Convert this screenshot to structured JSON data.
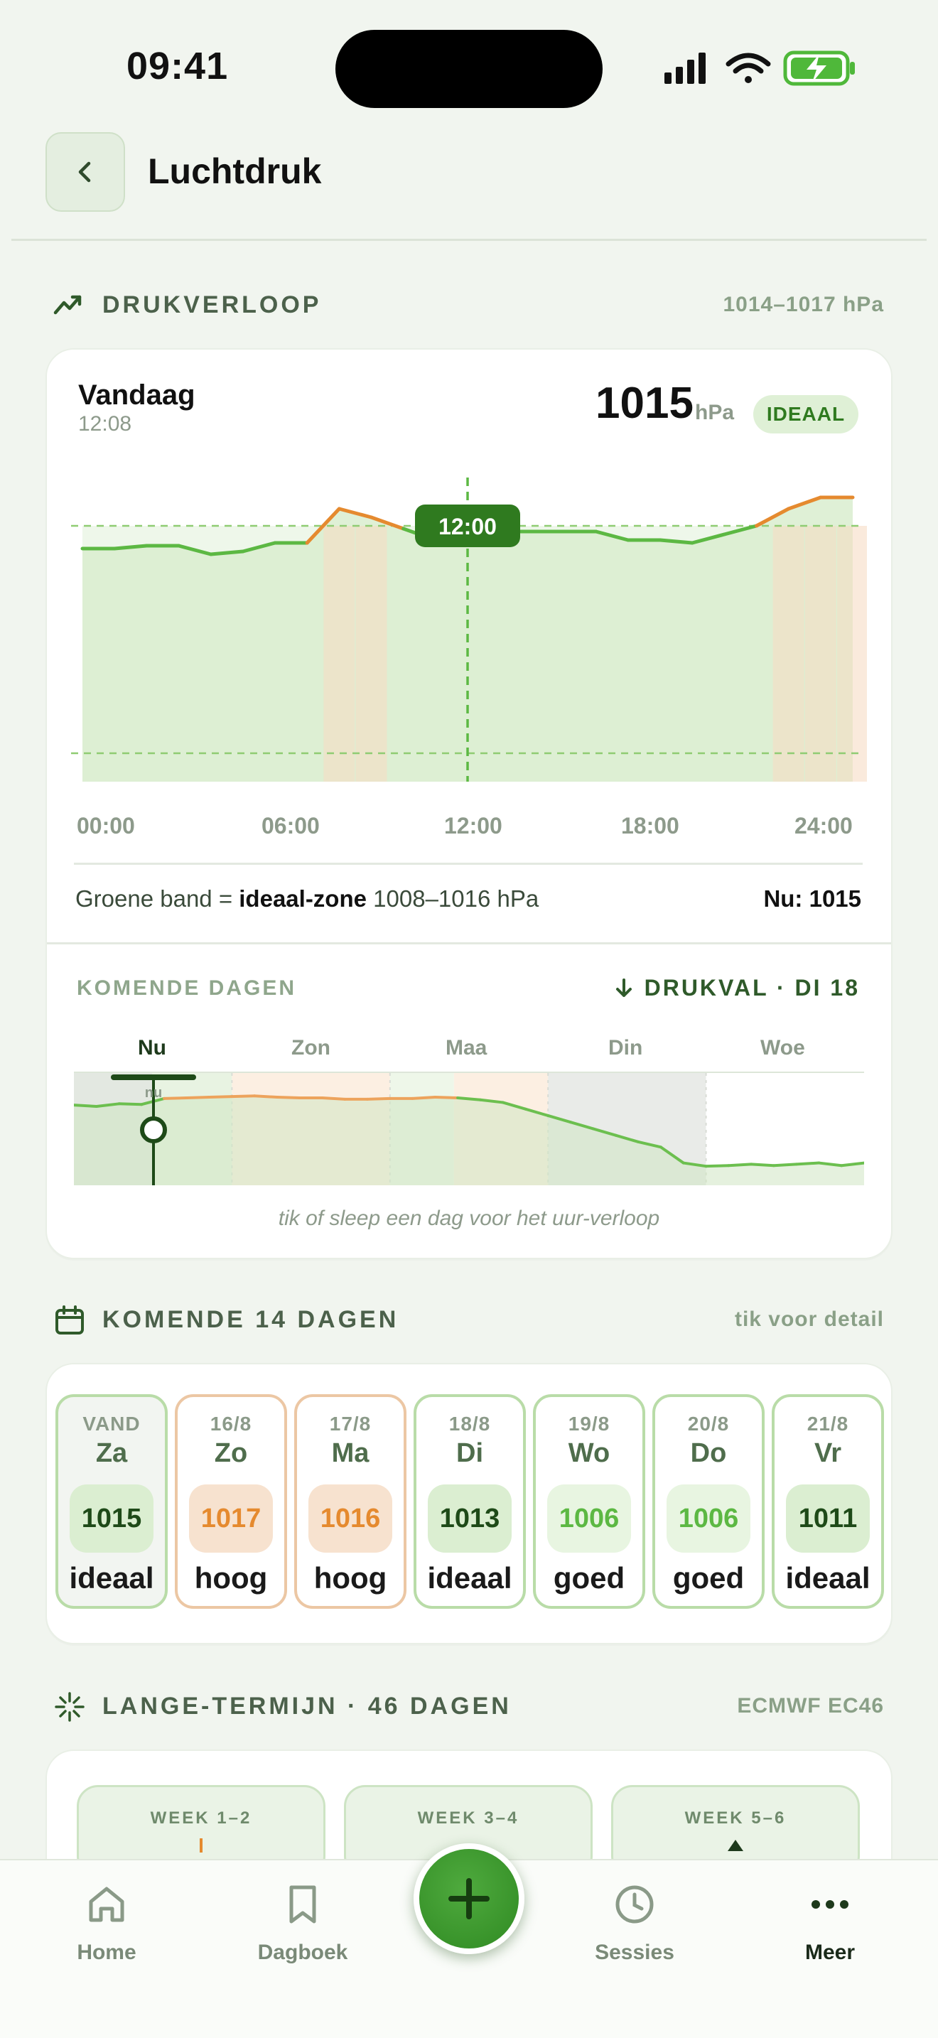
{
  "status_bar": {
    "time": "09:41"
  },
  "header": {
    "title": "Luchtdruk"
  },
  "pressure_section": {
    "label": "DRUKVERLOOP",
    "range": "1014–1017 hPa"
  },
  "today_card": {
    "day": "Vandaag",
    "time": "12:08",
    "value": "1015",
    "unit": "hPa",
    "badge": "IDEAAL",
    "cursor_label": "12:00",
    "x_ticks": [
      "00:00",
      "06:00",
      "12:00",
      "18:00",
      "24:00"
    ],
    "legend_prefix": "Groene band =",
    "legend_bold": "ideaal-zone",
    "legend_range": "1008–1016 hPa",
    "now_text": "Nu: 1015"
  },
  "chart_data": [
    {
      "type": "line",
      "x": [
        "00:00",
        "01:00",
        "02:00",
        "03:00",
        "04:00",
        "05:00",
        "06:00",
        "07:00",
        "08:00",
        "09:00",
        "10:00",
        "11:00",
        "12:00",
        "13:00",
        "14:00",
        "15:00",
        "16:00",
        "17:00",
        "18:00",
        "19:00",
        "20:00",
        "21:00",
        "22:00",
        "23:00",
        "24:00"
      ],
      "series": [
        {
          "values": [
            1015.2,
            1015.2,
            1015.3,
            1015.3,
            1015.0,
            1015.1,
            1015.4,
            1015.4,
            1016.6,
            1016.3,
            1015.9,
            1015.5,
            1015.7,
            1015.8,
            1015.8,
            1015.8,
            1015.8,
            1015.5,
            1015.5,
            1015.4,
            1015.7,
            1016.0,
            1016.6,
            1017.0,
            1017.0
          ]
        }
      ],
      "ideal_band": [
        1008,
        1016
      ],
      "ylim": [
        1007,
        1018
      ]
    },
    {
      "type": "area",
      "days": [
        "Nu",
        "Zon",
        "Maa",
        "Din",
        "Woe"
      ],
      "marker_label": "nu",
      "values": [
        1015.2,
        1015.0,
        1015.4,
        1015.3,
        1016.2,
        1016.3,
        1016.4,
        1016.5,
        1016.6,
        1016.4,
        1016.3,
        1016.3,
        1016.1,
        1016.1,
        1016.2,
        1016.2,
        1016.4,
        1016.3,
        1016.0,
        1015.6,
        1014.6,
        1013.6,
        1012.6,
        1011.6,
        1010.6,
        1009.6,
        1008.8,
        1006.4,
        1005.9,
        1006.0,
        1006.2,
        1006.0,
        1006.2,
        1006.4,
        1006.0,
        1006.4
      ]
    }
  ],
  "upcoming": {
    "label": "KOMENDE DAGEN",
    "alert": "DRUKVAL · DI 18",
    "days": [
      "Nu",
      "Zon",
      "Maa",
      "Din",
      "Woe"
    ],
    "marker": "nu",
    "hint": "tik of sleep een dag voor het uur-verloop"
  },
  "forecast14": {
    "label": "KOMENDE 14 DAGEN",
    "hint": "tik voor detail",
    "days": [
      {
        "date": "VAND",
        "day": "Za",
        "value": "1015",
        "status": "ideaal"
      },
      {
        "date": "16/8",
        "day": "Zo",
        "value": "1017",
        "status": "hoog"
      },
      {
        "date": "17/8",
        "day": "Ma",
        "value": "1016",
        "status": "hoog"
      },
      {
        "date": "18/8",
        "day": "Di",
        "value": "1013",
        "status": "ideaal"
      },
      {
        "date": "19/8",
        "day": "Wo",
        "value": "1006",
        "status": "goed"
      },
      {
        "date": "20/8",
        "day": "Do",
        "value": "1006",
        "status": "goed"
      },
      {
        "date": "21/8",
        "day": "Vr",
        "value": "1011",
        "status": "ideaal"
      }
    ]
  },
  "longterm": {
    "label": "LANGE-TERMIJN · 46 DAGEN",
    "source": "ECMWF EC46",
    "weeks": [
      "WEEK 1–2",
      "WEEK 3–4",
      "WEEK 5–6"
    ]
  },
  "nav": {
    "home": "Home",
    "dagboek": "Dagboek",
    "sessies": "Sessies",
    "meer": "Meer"
  },
  "colors": {
    "green": "#5cb843",
    "dark_green": "#2f7a1f",
    "orange": "#e58a2f",
    "band": "#ddefd4"
  }
}
